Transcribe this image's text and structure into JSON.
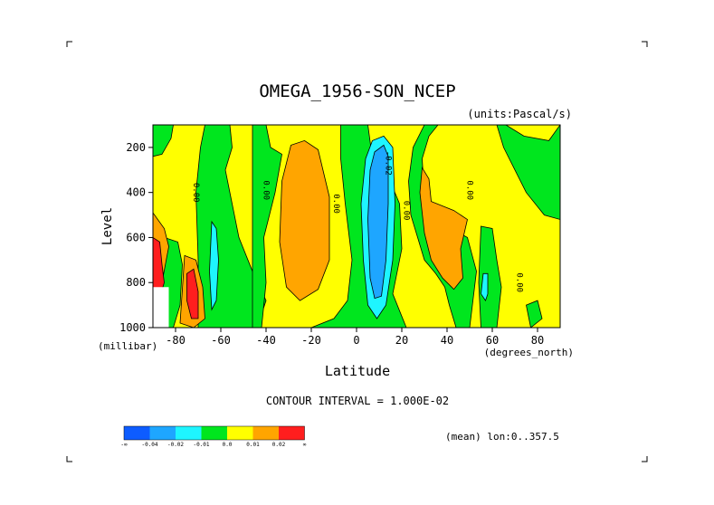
{
  "chart_data": {
    "type": "heatmap",
    "title": "OMEGA_1956-SON_NCEP",
    "units_label": "(units:Pascal/s)",
    "xlabel": "Latitude",
    "x_units": "(degrees_north)",
    "ylabel": "Level",
    "y_units": "(millibar)",
    "xlim": [
      -90,
      90
    ],
    "ylim": [
      1000,
      100
    ],
    "x_ticks": [
      -80,
      -60,
      -40,
      -20,
      0,
      20,
      40,
      60,
      80
    ],
    "x_tick_labels": [
      "-80",
      "-60",
      "-40",
      "-20",
      "0",
      "20",
      "40",
      "60",
      "80"
    ],
    "y_ticks": [
      200,
      400,
      600,
      800,
      1000
    ],
    "y_tick_labels": [
      "200",
      "400",
      "600",
      "800",
      "1000"
    ],
    "contour_interval_text": "CONTOUR INTERVAL = 1.000E-02",
    "mean_text": "(mean) lon:0..357.5",
    "contour_labels": [
      {
        "text": "0.00",
        "lat": -72,
        "lev": 400
      },
      {
        "text": "0.00",
        "lat": -41,
        "lev": 390
      },
      {
        "text": "0.00",
        "lat": -10,
        "lev": 450
      },
      {
        "text": "-0.02",
        "lat": 13,
        "lev": 270
      },
      {
        "text": "0.00",
        "lat": 21,
        "lev": 480
      },
      {
        "text": "0.00",
        "lat": 49,
        "lev": 390
      },
      {
        "text": "0.00",
        "lat": 71,
        "lev": 800
      }
    ],
    "colorbar": {
      "colors": [
        "#0d5cff",
        "#1ea6ff",
        "#1ef5ff",
        "#00e61e",
        "#ffff00",
        "#ffa500",
        "#ff1e1e"
      ],
      "tick_labels": [
        "-∞",
        "-0.04",
        "-0.02",
        "-0.01",
        "0.0",
        "0.01",
        "0.02",
        "∞"
      ]
    },
    "regions": [
      {
        "level": "0.00..0.01",
        "color": "#ffff00",
        "desc": "background positive"
      },
      {
        "level": "-0.01..0.00",
        "color": "#00e61e",
        "desc": "green negative bands"
      },
      {
        "level": "0.01..0.02",
        "color": "#ffa500",
        "desc": "subsidence near -25 and 35"
      },
      {
        "level": "-0.02..-0.01",
        "color": "#1ef5ff",
        "desc": "cyan around ascent near 10"
      },
      {
        "level": "-0.04..-0.02",
        "color": "#1ea6ff",
        "desc": "ITCZ ascent core near 10"
      },
      {
        "level": "> 0.02",
        "color": "#ff1e1e",
        "desc": "strong descent near -72"
      }
    ]
  }
}
